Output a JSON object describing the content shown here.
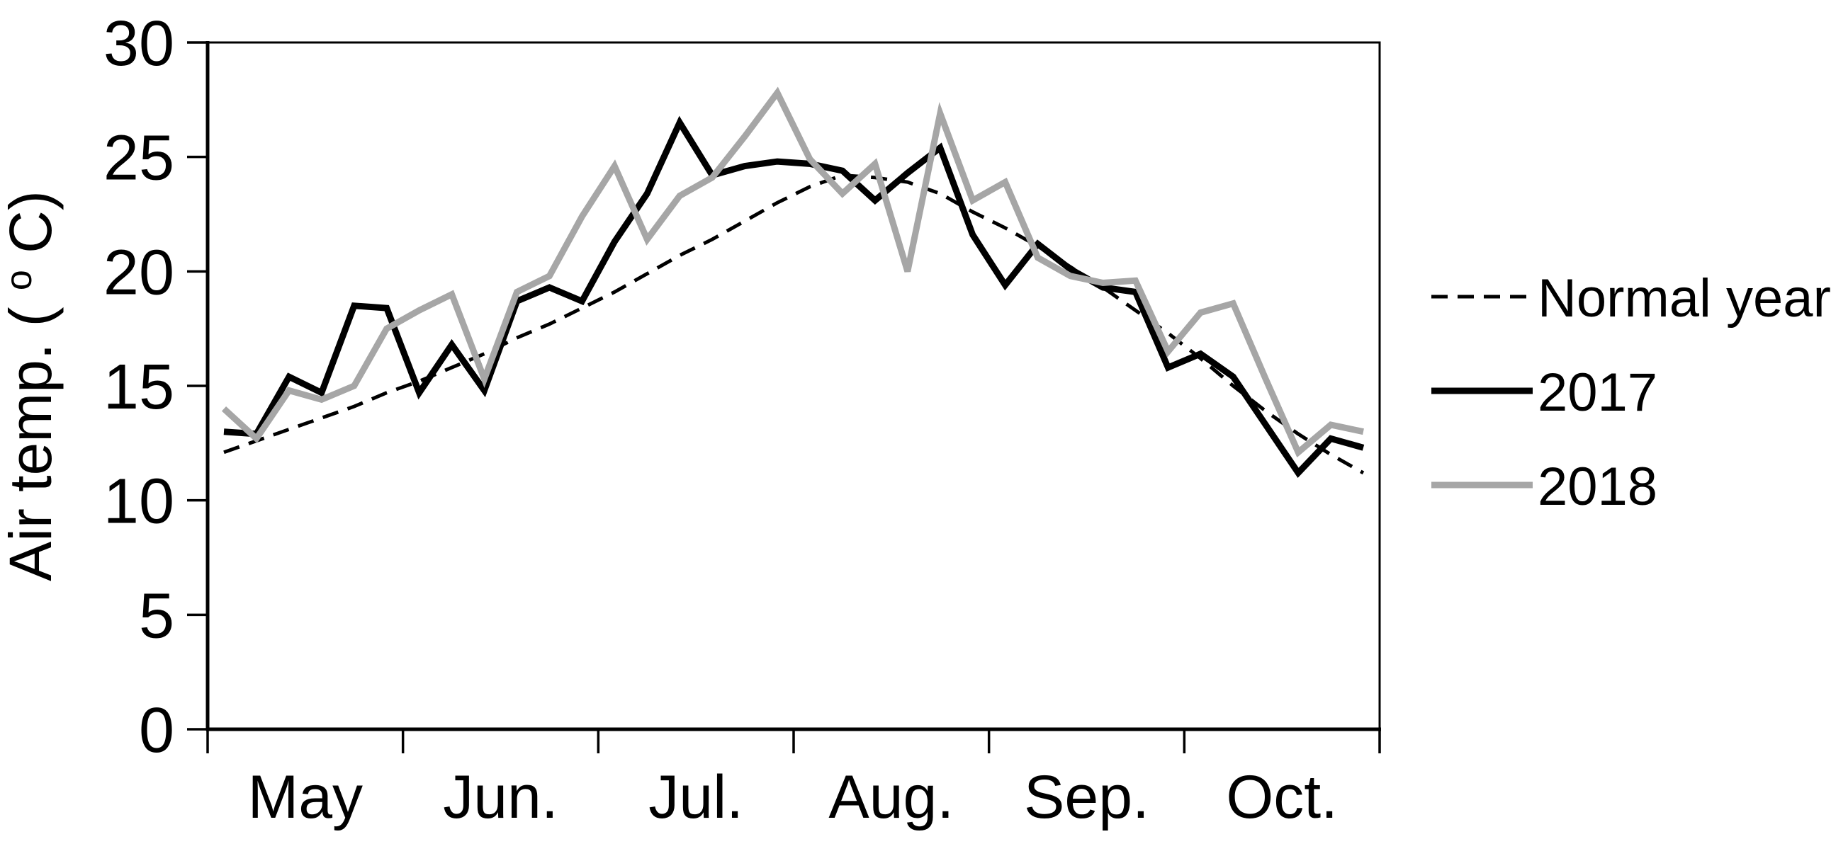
{
  "figure": {
    "background_color": "#ffffff",
    "title": ""
  },
  "chart_data": {
    "type": "line",
    "title": "",
    "xlabel": "",
    "ylabel": "Air temp. (oC)",
    "ylabel_parts": [
      "Air temp. (",
      "o",
      "C)"
    ],
    "ylim": [
      0,
      30
    ],
    "yticks": [
      0,
      5,
      10,
      15,
      20,
      25,
      30
    ],
    "x_labels": [
      "May",
      "Jun.",
      "Jul.",
      "Aug.",
      "Sep.",
      "Oct."
    ],
    "points_per_month": 6,
    "grid": "off",
    "legend_position": "right-middle",
    "series": [
      {
        "name": "Normal year",
        "style": "dashed",
        "color": "#000000",
        "values": [
          12.1,
          12.6,
          13.1,
          13.6,
          14.1,
          14.7,
          15.2,
          15.8,
          16.4,
          17.1,
          17.7,
          18.4,
          19.1,
          19.9,
          20.7,
          21.4,
          22.2,
          23.0,
          23.7,
          24.2,
          24.1,
          23.9,
          23.4,
          22.6,
          21.9,
          21.1,
          20.2,
          19.3,
          18.3,
          17.3,
          16.2,
          15.0,
          13.9,
          12.9,
          12.0,
          11.2
        ]
      },
      {
        "name": "2017",
        "style": "solid",
        "color": "#000000",
        "values": [
          13.0,
          12.9,
          15.4,
          14.7,
          18.5,
          18.4,
          14.7,
          16.8,
          14.8,
          18.7,
          19.3,
          18.7,
          21.3,
          23.4,
          26.5,
          24.2,
          24.6,
          24.8,
          24.7,
          24.4,
          23.1,
          24.3,
          25.4,
          21.6,
          19.4,
          21.2,
          20.1,
          19.3,
          19.1,
          15.8,
          16.4,
          15.4,
          13.3,
          11.2,
          12.7,
          12.3
        ]
      },
      {
        "name": "2018",
        "style": "solid",
        "color": "#a6a6a6",
        "values": [
          14.0,
          12.7,
          14.8,
          14.4,
          15.0,
          17.5,
          18.3,
          19.0,
          15.3,
          19.1,
          19.8,
          22.4,
          24.6,
          21.4,
          23.3,
          24.1,
          25.9,
          27.8,
          24.9,
          23.4,
          24.7,
          20.0,
          26.9,
          23.1,
          23.9,
          20.6,
          19.8,
          19.5,
          19.6,
          16.5,
          18.2,
          18.6,
          15.3,
          12.1,
          13.3,
          13.0
        ]
      }
    ]
  }
}
